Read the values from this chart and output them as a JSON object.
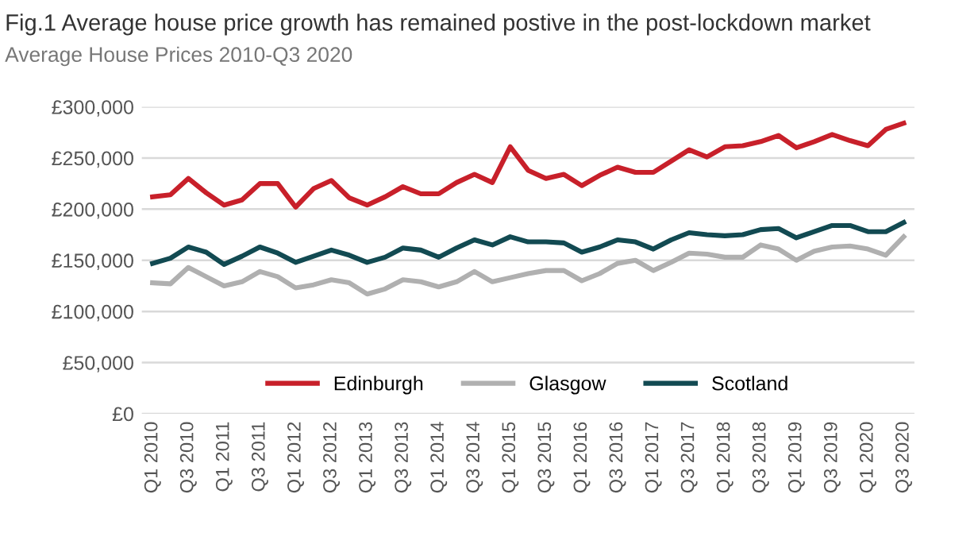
{
  "chart_data": {
    "type": "line",
    "title": "Fig.1 Average house price growth has remained postive in the post-lockdown market",
    "subtitle": "Average House Prices 2010-Q3 2020",
    "categories": [
      "Q1 2010",
      null,
      "Q3 2010",
      null,
      "Q1 2011",
      null,
      "Q3 2011",
      null,
      "Q1 2012",
      null,
      "Q3 2012",
      null,
      "Q1 2013",
      null,
      "Q3 2013",
      null,
      "Q1 2014",
      null,
      "Q3 2014",
      null,
      "Q1 2015",
      null,
      "Q3 2015",
      null,
      "Q1 2016",
      null,
      "Q3 2016",
      null,
      "Q1 2017",
      null,
      "Q3 2017",
      null,
      "Q1 2018",
      null,
      "Q3 2018",
      null,
      "Q1 2019",
      null,
      "Q3 2019",
      null,
      "Q1 2020",
      null,
      "Q3 2020"
    ],
    "series": [
      {
        "name": "Edinburgh",
        "color": "#c8202a",
        "values": [
          212000,
          214000,
          230000,
          216000,
          204000,
          209000,
          225000,
          225000,
          202000,
          220000,
          228000,
          211000,
          204000,
          212000,
          222000,
          215000,
          215000,
          226000,
          234000,
          226000,
          261000,
          238000,
          230000,
          234000,
          223000,
          233000,
          241000,
          236000,
          236000,
          247000,
          258000,
          251000,
          261000,
          262000,
          266000,
          272000,
          260000,
          266000,
          273000,
          267000,
          262000,
          278000,
          284000
        ]
      },
      {
        "name": "Glasgow",
        "color": "#b0b0b0",
        "values": [
          128000,
          127000,
          143000,
          134000,
          125000,
          129000,
          139000,
          134000,
          123000,
          126000,
          131000,
          128000,
          117000,
          122000,
          131000,
          129000,
          124000,
          129000,
          139000,
          129000,
          133000,
          137000,
          140000,
          140000,
          130000,
          137000,
          147000,
          150000,
          140000,
          148000,
          157000,
          156000,
          153000,
          153000,
          165000,
          161000,
          150000,
          159000,
          163000,
          164000,
          161000,
          155000,
          173000
        ]
      },
      {
        "name": "Scotland",
        "color": "#124a52",
        "values": [
          147000,
          152000,
          163000,
          158000,
          146000,
          154000,
          163000,
          157000,
          148000,
          154000,
          160000,
          155000,
          148000,
          153000,
          162000,
          160000,
          153000,
          162000,
          170000,
          165000,
          173000,
          168000,
          168000,
          167000,
          158000,
          163000,
          170000,
          168000,
          161000,
          170000,
          177000,
          175000,
          174000,
          175000,
          180000,
          181000,
          172000,
          178000,
          184000,
          184000,
          178000,
          178000,
          187000
        ]
      }
    ],
    "ylim": [
      0,
      300000
    ],
    "yticks": [
      {
        "value": 0,
        "label": "£0"
      },
      {
        "value": 50000,
        "label": "£50,000"
      },
      {
        "value": 100000,
        "label": "£100,000"
      },
      {
        "value": 150000,
        "label": "£150,000"
      },
      {
        "value": 200000,
        "label": "£200,000"
      },
      {
        "value": 250000,
        "label": "£250,000"
      },
      {
        "value": 300000,
        "label": "£300,000"
      }
    ],
    "grid": "y",
    "legend": "bottom",
    "marker": "none",
    "line_style": "solid"
  }
}
